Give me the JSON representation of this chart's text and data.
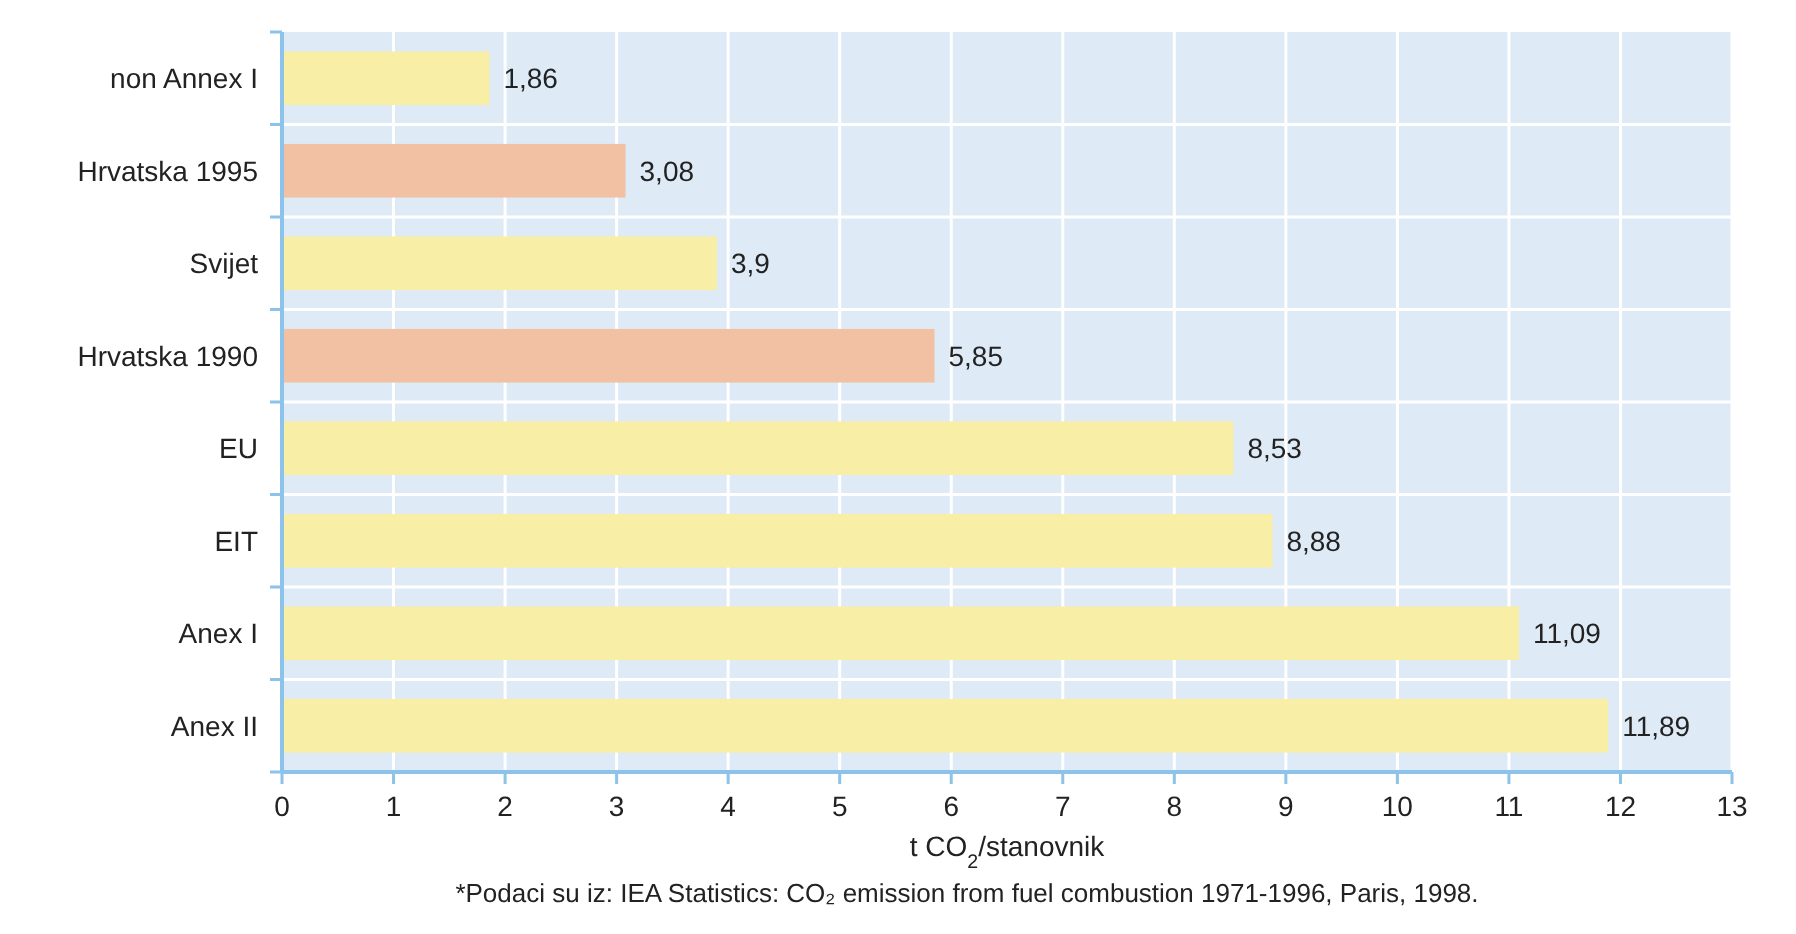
{
  "chart_data": {
    "type": "bar",
    "orientation": "horizontal",
    "categories": [
      "non Annex I",
      "Hrvatska 1995",
      "Svijet",
      "Hrvatska 1990",
      "EU",
      "EIT",
      "Anex I",
      "Anex II"
    ],
    "values": [
      1.86,
      3.08,
      3.9,
      5.85,
      8.53,
      8.88,
      11.09,
      11.89
    ],
    "colors": [
      "#f8eea6",
      "#f2c0a3",
      "#f8eea6",
      "#f2c0a3",
      "#f8eea6",
      "#f8eea6",
      "#f8eea6",
      "#f8eea6"
    ],
    "value_labels": [
      "1,86",
      "3,08",
      "3,9",
      "5,85",
      "8,53",
      "8,88",
      "11,09",
      "11,89"
    ],
    "xlim": [
      0,
      13
    ],
    "xticks": [
      0,
      1,
      2,
      3,
      4,
      5,
      6,
      7,
      8,
      9,
      10,
      11,
      12,
      13
    ],
    "grid": true,
    "xlabel": "t CO$_{2}$/stanovnik",
    "annotations": [
      "*Podaci su iz: IEA Statistics: CO₂ emission from fuel combustion 1971-1996, Paris, 1998."
    ]
  }
}
